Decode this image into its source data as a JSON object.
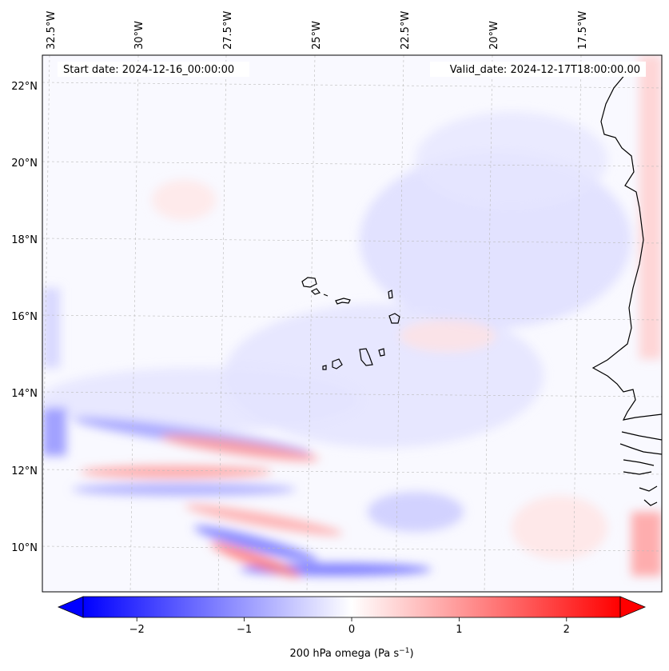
{
  "header": {
    "start_date": "Start date: 2024-12-16_00:00:00",
    "valid_date": "Valid_date: 2024-12-17T18:00:00.00"
  },
  "longitude_ticks": [
    "32.5°W",
    "30°W",
    "27.5°W",
    "25°W",
    "22.5°W",
    "20°W",
    "17.5°W"
  ],
  "latitude_ticks": [
    "22°N",
    "20°N",
    "18°N",
    "16°N",
    "14°N",
    "12°N",
    "10°N"
  ],
  "colorbar": {
    "label": "200 hPa omega (Pa s",
    "label_sup": "−1",
    "label_close": ")",
    "ticks": [
      "−2",
      "−1",
      "0",
      "1",
      "2"
    ],
    "tick_values": [
      -2,
      -1,
      0,
      1,
      2
    ],
    "range": [
      -2.5,
      2.5
    ],
    "colormap": "bwr",
    "extend": "both",
    "low_color": "#0000ff",
    "mid_color": "#ffffff",
    "high_color": "#ff0000"
  },
  "map": {
    "variable": "200 hPa omega",
    "region": "Eastern tropical Atlantic, Cape Verde islands and West African coast",
    "coastline_color": "#000000",
    "gridline_color": "#bbbbbb"
  }
}
